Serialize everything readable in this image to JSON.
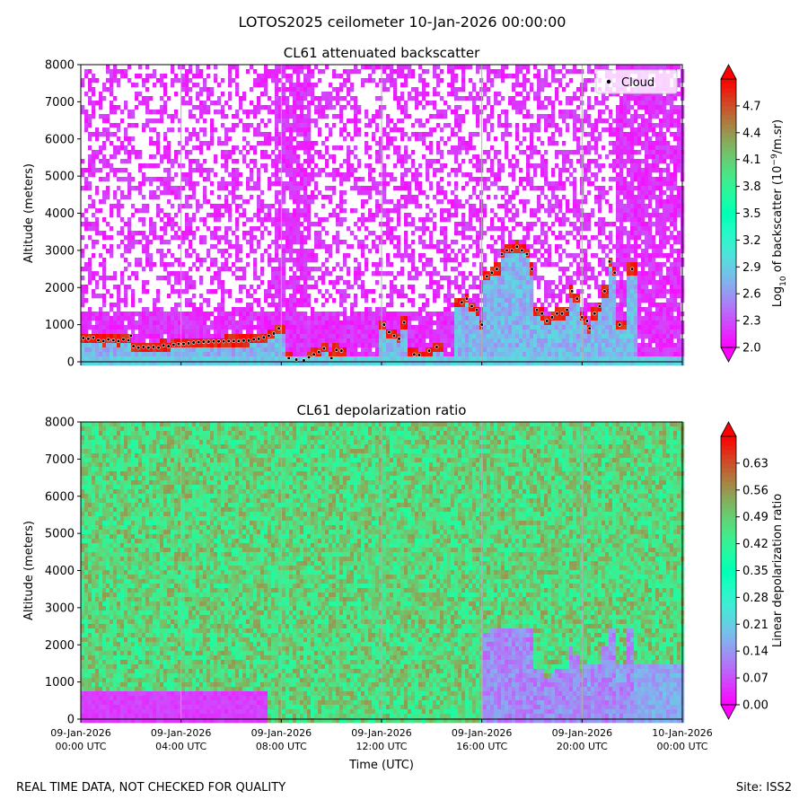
{
  "figure_title": "LOTOS2025 ceilometer 10-Jan-2026 00:00:00",
  "footer_left": "REAL TIME DATA, NOT CHECKED FOR QUALITY",
  "footer_right": "Site: ISS2",
  "x_axis": {
    "label": "Time (UTC)",
    "range_hours": [
      0,
      24
    ],
    "ticks": [
      {
        "hour": 0,
        "line1": "09-Jan-2026",
        "line2": "00:00 UTC"
      },
      {
        "hour": 4,
        "line1": "09-Jan-2026",
        "line2": "04:00 UTC"
      },
      {
        "hour": 8,
        "line1": "09-Jan-2026",
        "line2": "08:00 UTC"
      },
      {
        "hour": 12,
        "line1": "09-Jan-2026",
        "line2": "12:00 UTC"
      },
      {
        "hour": 16,
        "line1": "09-Jan-2026",
        "line2": "16:00 UTC"
      },
      {
        "hour": 20,
        "line1": "09-Jan-2026",
        "line2": "20:00 UTC"
      },
      {
        "hour": 24,
        "line1": "10-Jan-2026",
        "line2": "00:00 UTC"
      }
    ]
  },
  "chart_data": [
    {
      "type": "heatmap",
      "title": "CL61 attenuated backscatter",
      "ylabel": "Altitude (meters)",
      "ylim": [
        0,
        8000
      ],
      "yticks": [
        0,
        1000,
        2000,
        3000,
        4000,
        5000,
        6000,
        7000,
        8000
      ],
      "colorbar": {
        "label": "Log10 of backscatter (10^-9/m.sr)",
        "label_parts": [
          "Log",
          "10",
          " of backscatter (10",
          "−9",
          "/m.sr)"
        ],
        "colormap": "rainbow",
        "range": [
          2.0,
          5.0
        ],
        "ticks": [
          "2.0",
          "2.3",
          "2.6",
          "2.9",
          "3.2",
          "3.5",
          "3.8",
          "4.1",
          "4.4",
          "4.7"
        ],
        "extend": "both"
      },
      "legend": {
        "entries": [
          "Cloud"
        ],
        "position": "top-right"
      },
      "cloud_base": [
        [
          0.1,
          640
        ],
        [
          0.3,
          620
        ],
        [
          0.5,
          650
        ],
        [
          0.7,
          580
        ],
        [
          0.9,
          560
        ],
        [
          1.1,
          600
        ],
        [
          1.3,
          580
        ],
        [
          1.5,
          560
        ],
        [
          1.7,
          600
        ],
        [
          1.9,
          580
        ],
        [
          2.0,
          700
        ],
        [
          2.1,
          420
        ],
        [
          2.3,
          380
        ],
        [
          2.5,
          400
        ],
        [
          2.7,
          380
        ],
        [
          2.9,
          400
        ],
        [
          3.1,
          380
        ],
        [
          3.3,
          440
        ],
        [
          3.5,
          420
        ],
        [
          3.7,
          460
        ],
        [
          3.9,
          480
        ],
        [
          4.1,
          480
        ],
        [
          4.3,
          500
        ],
        [
          4.5,
          520
        ],
        [
          4.7,
          530
        ],
        [
          4.9,
          540
        ],
        [
          5.1,
          540
        ],
        [
          5.3,
          550
        ],
        [
          5.5,
          550
        ],
        [
          5.7,
          550
        ],
        [
          5.9,
          560
        ],
        [
          6.1,
          560
        ],
        [
          6.3,
          560
        ],
        [
          6.5,
          570
        ],
        [
          6.7,
          570
        ],
        [
          6.9,
          600
        ],
        [
          7.1,
          620
        ],
        [
          7.3,
          660
        ],
        [
          7.5,
          700
        ],
        [
          7.7,
          760
        ],
        [
          7.9,
          900
        ],
        [
          8.3,
          100
        ],
        [
          8.6,
          60
        ],
        [
          8.9,
          40
        ],
        [
          9.1,
          120
        ],
        [
          9.3,
          200
        ],
        [
          9.5,
          260
        ],
        [
          9.7,
          360
        ],
        [
          10.0,
          100
        ],
        [
          10.2,
          320
        ],
        [
          10.4,
          300
        ],
        [
          12.1,
          1000
        ],
        [
          12.3,
          800
        ],
        [
          12.5,
          700
        ],
        [
          12.7,
          620
        ],
        [
          12.9,
          1060
        ],
        [
          13.3,
          200
        ],
        [
          13.5,
          180
        ],
        [
          13.9,
          300
        ],
        [
          14.2,
          400
        ],
        [
          15.2,
          1600
        ],
        [
          15.4,
          1700
        ],
        [
          15.6,
          1500
        ],
        [
          15.8,
          1400
        ],
        [
          16.0,
          1000
        ],
        [
          16.2,
          2300
        ],
        [
          16.4,
          2400
        ],
        [
          16.6,
          2500
        ],
        [
          16.8,
          2900
        ],
        [
          17.0,
          3000
        ],
        [
          17.2,
          3000
        ],
        [
          17.4,
          3100
        ],
        [
          17.6,
          3000
        ],
        [
          17.8,
          2900
        ],
        [
          18.0,
          2500
        ],
        [
          18.2,
          1400
        ],
        [
          18.4,
          1300
        ],
        [
          18.6,
          1100
        ],
        [
          18.8,
          1200
        ],
        [
          19.0,
          1300
        ],
        [
          19.2,
          1300
        ],
        [
          19.4,
          1400
        ],
        [
          19.6,
          1900
        ],
        [
          19.8,
          1700
        ],
        [
          20.0,
          1200
        ],
        [
          20.2,
          1100
        ],
        [
          20.3,
          900
        ],
        [
          20.5,
          1300
        ],
        [
          20.7,
          1500
        ],
        [
          20.9,
          1900
        ],
        [
          21.1,
          2700
        ],
        [
          21.3,
          2400
        ],
        [
          21.5,
          1000
        ],
        [
          22.0,
          2500
        ]
      ]
    },
    {
      "type": "heatmap",
      "title": "CL61 depolarization ratio",
      "ylabel": "Altitude (meters)",
      "ylim": [
        0,
        8000
      ],
      "yticks": [
        0,
        1000,
        2000,
        3000,
        4000,
        5000,
        6000,
        7000,
        8000
      ],
      "colorbar": {
        "label": "Linear depolarization ratio",
        "colormap": "rainbow",
        "range": [
          0.0,
          0.7
        ],
        "ticks": [
          "0.00",
          "0.07",
          "0.14",
          "0.21",
          "0.28",
          "0.35",
          "0.42",
          "0.49",
          "0.56",
          "0.63"
        ],
        "extend": "both"
      }
    }
  ],
  "colors": {
    "legend_marker": "#000000",
    "vertical_gridlines": "#b0b0b0"
  }
}
